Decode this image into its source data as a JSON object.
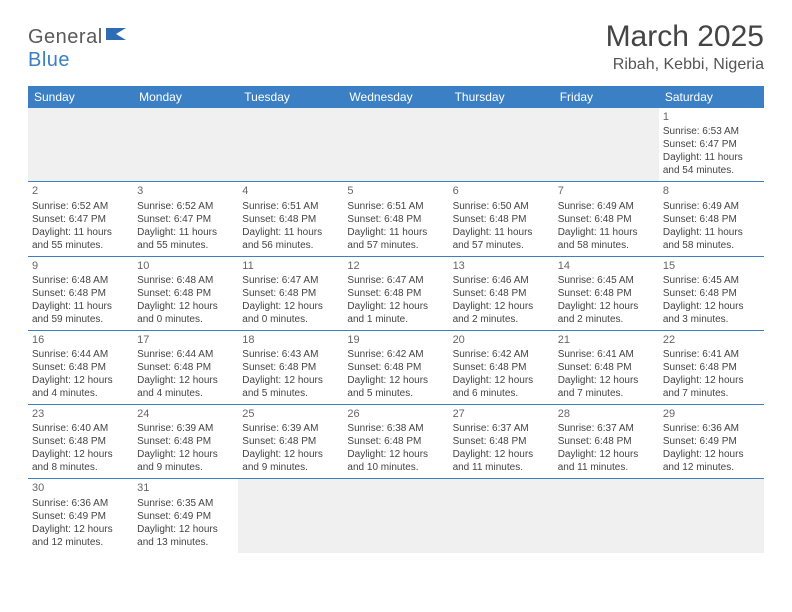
{
  "header": {
    "logo_general": "General",
    "logo_blue": "Blue",
    "month_title": "March 2025",
    "location": "Ribah, Kebbi, Nigeria"
  },
  "day_labels": [
    "Sunday",
    "Monday",
    "Tuesday",
    "Wednesday",
    "Thursday",
    "Friday",
    "Saturday"
  ],
  "colors": {
    "header_bg": "#3b7fc4",
    "header_fg": "#ffffff",
    "empty_bg": "#f0f0f0",
    "border": "#3b7fc4"
  },
  "weeks": [
    [
      null,
      null,
      null,
      null,
      null,
      null,
      {
        "n": "1",
        "sr": "Sunrise: 6:53 AM",
        "ss": "Sunset: 6:47 PM",
        "d1": "Daylight: 11 hours",
        "d2": "and 54 minutes."
      }
    ],
    [
      {
        "n": "2",
        "sr": "Sunrise: 6:52 AM",
        "ss": "Sunset: 6:47 PM",
        "d1": "Daylight: 11 hours",
        "d2": "and 55 minutes."
      },
      {
        "n": "3",
        "sr": "Sunrise: 6:52 AM",
        "ss": "Sunset: 6:47 PM",
        "d1": "Daylight: 11 hours",
        "d2": "and 55 minutes."
      },
      {
        "n": "4",
        "sr": "Sunrise: 6:51 AM",
        "ss": "Sunset: 6:48 PM",
        "d1": "Daylight: 11 hours",
        "d2": "and 56 minutes."
      },
      {
        "n": "5",
        "sr": "Sunrise: 6:51 AM",
        "ss": "Sunset: 6:48 PM",
        "d1": "Daylight: 11 hours",
        "d2": "and 57 minutes."
      },
      {
        "n": "6",
        "sr": "Sunrise: 6:50 AM",
        "ss": "Sunset: 6:48 PM",
        "d1": "Daylight: 11 hours",
        "d2": "and 57 minutes."
      },
      {
        "n": "7",
        "sr": "Sunrise: 6:49 AM",
        "ss": "Sunset: 6:48 PM",
        "d1": "Daylight: 11 hours",
        "d2": "and 58 minutes."
      },
      {
        "n": "8",
        "sr": "Sunrise: 6:49 AM",
        "ss": "Sunset: 6:48 PM",
        "d1": "Daylight: 11 hours",
        "d2": "and 58 minutes."
      }
    ],
    [
      {
        "n": "9",
        "sr": "Sunrise: 6:48 AM",
        "ss": "Sunset: 6:48 PM",
        "d1": "Daylight: 11 hours",
        "d2": "and 59 minutes."
      },
      {
        "n": "10",
        "sr": "Sunrise: 6:48 AM",
        "ss": "Sunset: 6:48 PM",
        "d1": "Daylight: 12 hours",
        "d2": "and 0 minutes."
      },
      {
        "n": "11",
        "sr": "Sunrise: 6:47 AM",
        "ss": "Sunset: 6:48 PM",
        "d1": "Daylight: 12 hours",
        "d2": "and 0 minutes."
      },
      {
        "n": "12",
        "sr": "Sunrise: 6:47 AM",
        "ss": "Sunset: 6:48 PM",
        "d1": "Daylight: 12 hours",
        "d2": "and 1 minute."
      },
      {
        "n": "13",
        "sr": "Sunrise: 6:46 AM",
        "ss": "Sunset: 6:48 PM",
        "d1": "Daylight: 12 hours",
        "d2": "and 2 minutes."
      },
      {
        "n": "14",
        "sr": "Sunrise: 6:45 AM",
        "ss": "Sunset: 6:48 PM",
        "d1": "Daylight: 12 hours",
        "d2": "and 2 minutes."
      },
      {
        "n": "15",
        "sr": "Sunrise: 6:45 AM",
        "ss": "Sunset: 6:48 PM",
        "d1": "Daylight: 12 hours",
        "d2": "and 3 minutes."
      }
    ],
    [
      {
        "n": "16",
        "sr": "Sunrise: 6:44 AM",
        "ss": "Sunset: 6:48 PM",
        "d1": "Daylight: 12 hours",
        "d2": "and 4 minutes."
      },
      {
        "n": "17",
        "sr": "Sunrise: 6:44 AM",
        "ss": "Sunset: 6:48 PM",
        "d1": "Daylight: 12 hours",
        "d2": "and 4 minutes."
      },
      {
        "n": "18",
        "sr": "Sunrise: 6:43 AM",
        "ss": "Sunset: 6:48 PM",
        "d1": "Daylight: 12 hours",
        "d2": "and 5 minutes."
      },
      {
        "n": "19",
        "sr": "Sunrise: 6:42 AM",
        "ss": "Sunset: 6:48 PM",
        "d1": "Daylight: 12 hours",
        "d2": "and 5 minutes."
      },
      {
        "n": "20",
        "sr": "Sunrise: 6:42 AM",
        "ss": "Sunset: 6:48 PM",
        "d1": "Daylight: 12 hours",
        "d2": "and 6 minutes."
      },
      {
        "n": "21",
        "sr": "Sunrise: 6:41 AM",
        "ss": "Sunset: 6:48 PM",
        "d1": "Daylight: 12 hours",
        "d2": "and 7 minutes."
      },
      {
        "n": "22",
        "sr": "Sunrise: 6:41 AM",
        "ss": "Sunset: 6:48 PM",
        "d1": "Daylight: 12 hours",
        "d2": "and 7 minutes."
      }
    ],
    [
      {
        "n": "23",
        "sr": "Sunrise: 6:40 AM",
        "ss": "Sunset: 6:48 PM",
        "d1": "Daylight: 12 hours",
        "d2": "and 8 minutes."
      },
      {
        "n": "24",
        "sr": "Sunrise: 6:39 AM",
        "ss": "Sunset: 6:48 PM",
        "d1": "Daylight: 12 hours",
        "d2": "and 9 minutes."
      },
      {
        "n": "25",
        "sr": "Sunrise: 6:39 AM",
        "ss": "Sunset: 6:48 PM",
        "d1": "Daylight: 12 hours",
        "d2": "and 9 minutes."
      },
      {
        "n": "26",
        "sr": "Sunrise: 6:38 AM",
        "ss": "Sunset: 6:48 PM",
        "d1": "Daylight: 12 hours",
        "d2": "and 10 minutes."
      },
      {
        "n": "27",
        "sr": "Sunrise: 6:37 AM",
        "ss": "Sunset: 6:48 PM",
        "d1": "Daylight: 12 hours",
        "d2": "and 11 minutes."
      },
      {
        "n": "28",
        "sr": "Sunrise: 6:37 AM",
        "ss": "Sunset: 6:48 PM",
        "d1": "Daylight: 12 hours",
        "d2": "and 11 minutes."
      },
      {
        "n": "29",
        "sr": "Sunrise: 6:36 AM",
        "ss": "Sunset: 6:49 PM",
        "d1": "Daylight: 12 hours",
        "d2": "and 12 minutes."
      }
    ],
    [
      {
        "n": "30",
        "sr": "Sunrise: 6:36 AM",
        "ss": "Sunset: 6:49 PM",
        "d1": "Daylight: 12 hours",
        "d2": "and 12 minutes."
      },
      {
        "n": "31",
        "sr": "Sunrise: 6:35 AM",
        "ss": "Sunset: 6:49 PM",
        "d1": "Daylight: 12 hours",
        "d2": "and 13 minutes."
      },
      null,
      null,
      null,
      null,
      null
    ]
  ]
}
